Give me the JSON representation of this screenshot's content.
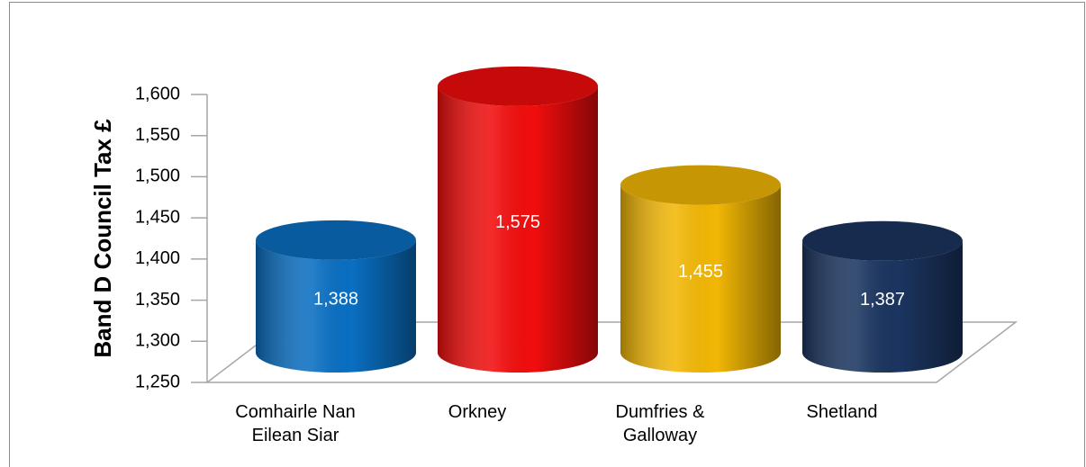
{
  "chart_data": {
    "type": "bar",
    "y_label": "Band D Council Tax £",
    "categories": [
      "Comhairle Nan Eilean Siar",
      "Orkney",
      "Dumfries & Galloway",
      "Shetland"
    ],
    "values": [
      1388,
      1575,
      1455,
      1387
    ],
    "value_labels": [
      "1,388",
      "1,575",
      "1,455",
      "1,387"
    ],
    "colors": [
      "#0a6fc2",
      "#f20d0d",
      "#f2b705",
      "#1b3560"
    ],
    "ylim": [
      1250,
      1600
    ],
    "yticks": [
      {
        "value": 1250,
        "label": "1,250"
      },
      {
        "value": 1300,
        "label": "1,300"
      },
      {
        "value": 1350,
        "label": "1,350"
      },
      {
        "value": 1400,
        "label": "1,400"
      },
      {
        "value": 1450,
        "label": "1,450"
      },
      {
        "value": 1500,
        "label": "1,500"
      },
      {
        "value": 1550,
        "label": "1,550"
      },
      {
        "value": 1600,
        "label": "1,600"
      }
    ]
  }
}
